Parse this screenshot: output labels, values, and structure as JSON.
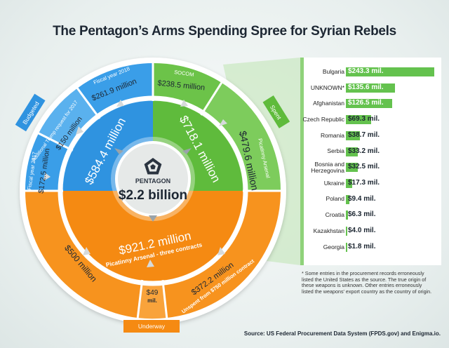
{
  "title": "The Pentagon’s Arms Spending Spree for Syrian Rebels",
  "colors": {
    "budgeted": "#3a9ee8",
    "spent": "#6cc349",
    "underway": "#f7931e",
    "center": "#e6e9e8",
    "bar": "#64c24e"
  },
  "center": {
    "label": "PENTAGON",
    "total": "$2.2 billion",
    "icon": "pentagon-icon"
  },
  "wheel": {
    "budgeted": {
      "tag": "Budgeted",
      "total": "$584.4 million",
      "segments": [
        {
          "label": "Fiscal year 2018",
          "amount": "$261.9 million"
        },
        {
          "label": "Additional Trump request for 2017",
          "amount": "$150 million"
        },
        {
          "label": "Fiscal year 2017",
          "amount": "$172.5 million"
        }
      ]
    },
    "spent": {
      "tag": "Spent",
      "total": "$718.1 million",
      "segments": [
        {
          "label": "SOCOM",
          "amount": "$238.5 million"
        },
        {
          "label": "Picatinny Arsenal",
          "amount": "$479.6 million"
        }
      ]
    },
    "underway": {
      "tag": "Underway",
      "total": "$921.2 million",
      "subtitle": "Picatinny Arsenal - three contracts",
      "segments": [
        {
          "amount": "$500 million"
        },
        {
          "amount": "$49 mil."
        },
        {
          "amount": "$372.2 million",
          "label": "Unspent from $750 million contract"
        }
      ]
    }
  },
  "chart_data": {
    "type": "bar",
    "title": "The Pentagon’s Arms Spending Spree for Syrian Rebels",
    "orientation": "horizontal",
    "categories": [
      "Bulgaria",
      "UNKNOWN*",
      "Afghanistan",
      "Czech Republic",
      "Romania",
      "Serbia",
      "Bosnia and Herzegovina",
      "Ukraine",
      "Poland",
      "Croatia",
      "Kazakhstan",
      "Georgia"
    ],
    "values": [
      243.3,
      135.6,
      126.5,
      69.3,
      38.7,
      33.2,
      32.5,
      17.3,
      9.4,
      6.3,
      4.0,
      1.8
    ],
    "value_labels": [
      "$243.3 mil.",
      "$135.6 mil.",
      "$126.5 mil.",
      "$69.3 mil.",
      "$38.7 mil.",
      "$33.2 mil.",
      "$32.5 mil.",
      "$17.3 mil.",
      "$9.4 mil.",
      "$6.3 mil.",
      "$4.0 mil.",
      "$1.8 mil."
    ],
    "xlim": [
      0,
      243.3
    ],
    "grid": false
  },
  "footnote": "* Some entries in the procurement records erroneously listed the United States as the source. The true origin of these weapons is unknown. Other entries erroneously listed the weapons' export country as the country of origin.",
  "source": "Source: US Federal Procurement Data System (FPDS.gov) and Enigma.io."
}
